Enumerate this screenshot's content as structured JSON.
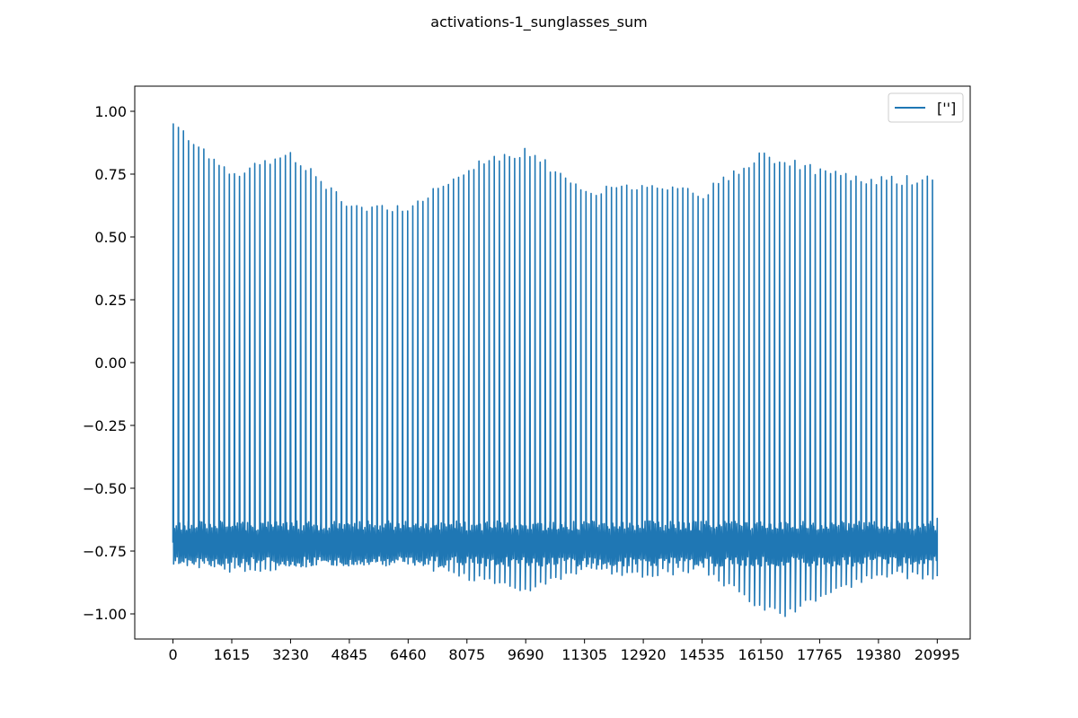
{
  "chart_data": {
    "type": "line",
    "title": "activations-1_sunglasses_sum",
    "xlabel": "",
    "ylabel": "",
    "xlim": [
      -1050,
      21900
    ],
    "ylim": [
      -1.1,
      1.1
    ],
    "grid": false,
    "legend_position": "top-right",
    "x_ticks": [
      0,
      1615,
      3230,
      4845,
      6460,
      8075,
      9690,
      11305,
      12920,
      14535,
      16150,
      17765,
      19380,
      20995
    ],
    "x_tick_labels": [
      "0",
      "1615",
      "3230",
      "4845",
      "6460",
      "8075",
      "9690",
      "11305",
      "12920",
      "14535",
      "16150",
      "17765",
      "19380",
      "20995"
    ],
    "y_ticks": [
      -1.0,
      -0.75,
      -0.5,
      -0.25,
      0.0,
      0.25,
      0.5,
      0.75,
      1.0
    ],
    "y_tick_labels": [
      "−1.00",
      "−0.75",
      "−0.50",
      "−0.25",
      "0.00",
      "0.25",
      "0.50",
      "0.75",
      "1.00"
    ],
    "series": [
      {
        "name": "['']",
        "color": "#1f77b4",
        "description": "oscillating signal with ~150 sharp peaks; troughs near -0.75",
        "peaks": {
          "x": [
            0,
            1615,
            3230,
            4845,
            6460,
            8075,
            9690,
            11305,
            12920,
            14535,
            16150,
            17765,
            19380,
            20995
          ],
          "y": [
            0.95,
            0.75,
            0.83,
            0.62,
            0.62,
            0.77,
            0.84,
            0.68,
            0.7,
            0.67,
            0.82,
            0.76,
            0.72,
            0.73
          ]
        },
        "troughs": {
          "x": [
            0,
            1615,
            3230,
            4845,
            6460,
            8075,
            9690,
            11305,
            12920,
            14535,
            16150,
            16800,
            17765,
            19380,
            20995
          ],
          "y": [
            -0.79,
            -0.82,
            -0.81,
            -0.79,
            -0.79,
            -0.85,
            -0.9,
            -0.82,
            -0.84,
            -0.82,
            -0.97,
            -1.0,
            -0.93,
            -0.84,
            -0.85
          ]
        }
      }
    ]
  }
}
